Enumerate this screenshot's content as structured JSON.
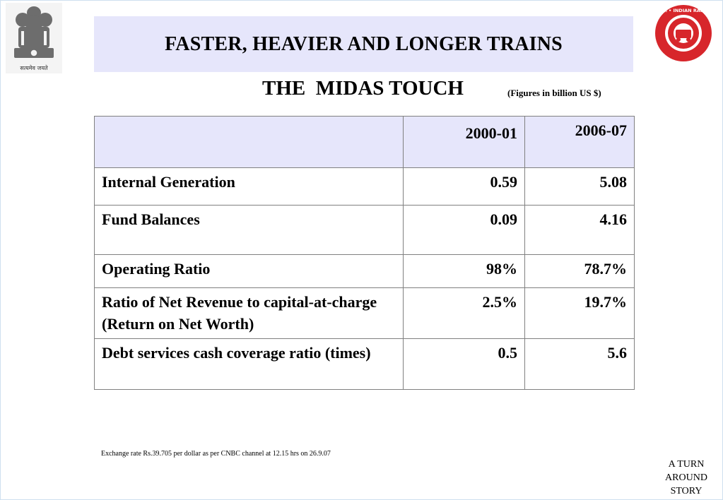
{
  "header": {
    "title": "FASTER, HEAVIER AND LONGER TRAINS",
    "subtitle": "THE  MIDAS TOUCH",
    "units_note": "(Figures in billion US $)"
  },
  "logos": {
    "left_emblem_caption": "सत्यमेव जयते",
    "right_logo_text": "भारतीय रेल • INDIAN RAILWAYS"
  },
  "table": {
    "columns": [
      "",
      "2000-01",
      "2006-07"
    ],
    "rows": [
      {
        "label": "Internal Generation",
        "v1": "0.59",
        "v2": "5.08"
      },
      {
        "label": "Fund Balances",
        "v1": "0.09",
        "v2": "4.16"
      },
      {
        "label": "Operating Ratio",
        "v1": "98%",
        "v2": "78.7%"
      },
      {
        "label": "Ratio of Net Revenue to capital-at-charge (Return on Net Worth)",
        "v1": "2.5%",
        "v2": "19.7%"
      },
      {
        "label": "Debt services cash coverage ratio (times)",
        "v1": "0.5",
        "v2": "5.6"
      }
    ]
  },
  "footnote": "Exchange rate Rs.39.705 per dollar as per CNBC channel at 12.15 hrs on 26.9.07",
  "tagline": "A TURN AROUND STORY",
  "colors": {
    "header_fill": "#e6e6fb",
    "logo_red": "#d7262b",
    "table_border": "#808080"
  }
}
